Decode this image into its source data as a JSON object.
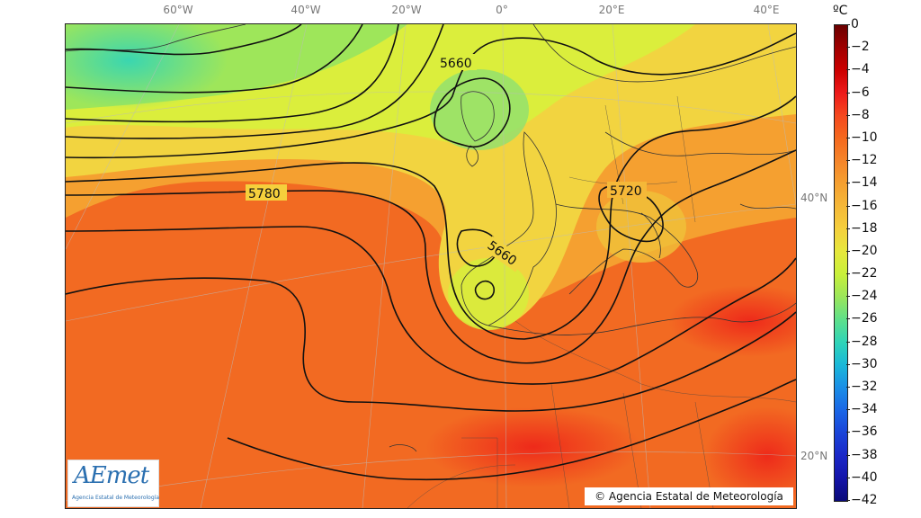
{
  "map": {
    "type": "weather_map_500hPa",
    "longitude_labels": [
      "60°W",
      "40°W",
      "20°W",
      "0°",
      "20°E",
      "40°E"
    ],
    "latitude_labels": [
      "40°N",
      "20°N"
    ],
    "contour_labels": [
      "5660",
      "5780",
      "5660",
      "5720"
    ]
  },
  "colorbar": {
    "unit": "ºC",
    "ticks": [
      "0",
      "−2",
      "−4",
      "−6",
      "−8",
      "−10",
      "−12",
      "−14",
      "−16",
      "−18",
      "−20",
      "−22",
      "−24",
      "−26",
      "−28",
      "−30",
      "−32",
      "−34",
      "−36",
      "−38",
      "−40",
      "−42"
    ]
  },
  "logo": {
    "wordmark": "AEmet",
    "subtitle": "Agencia Estatal de Meteorología"
  },
  "copyright": "© Agencia Estatal de Meteorología"
}
